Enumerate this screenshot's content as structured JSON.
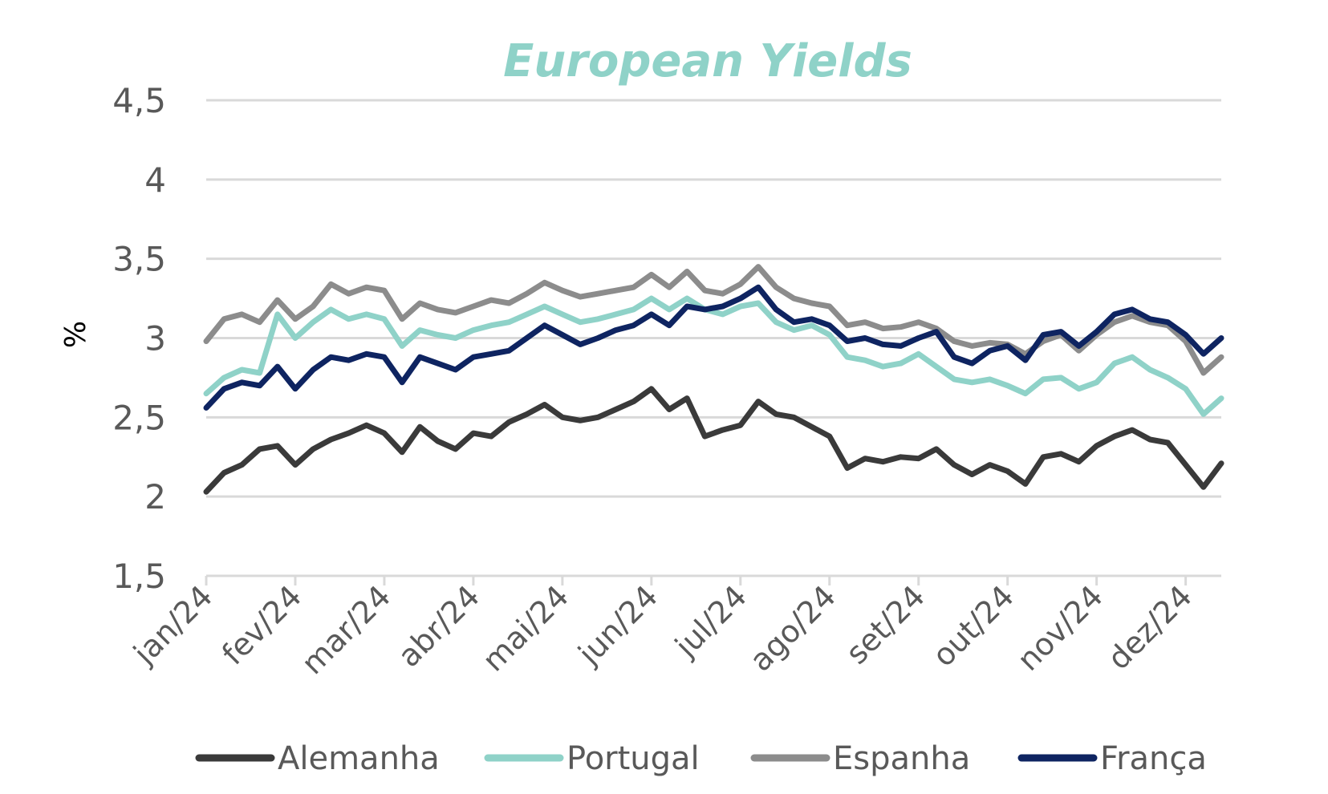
{
  "chart_data": {
    "type": "line",
    "title": "European Yields",
    "ylabel": "%",
    "xlabel": "",
    "ylim": [
      1.5,
      4.5
    ],
    "y_ticks": [
      1.5,
      2,
      2.5,
      3,
      3.5,
      4,
      4.5
    ],
    "y_tick_labels": [
      "1,5",
      "2",
      "2,5",
      "3",
      "3,5",
      "4",
      "4,5"
    ],
    "x_range": [
      0,
      11.4
    ],
    "x_ticks": [
      0,
      1,
      2,
      3,
      4,
      5,
      6,
      7,
      8,
      9,
      10,
      11
    ],
    "x_tick_labels": [
      "jan/24",
      "fev/24",
      "mar/24",
      "abr/24",
      "mai/24",
      "jun/24",
      "jul/24",
      "ago/24",
      "set/24",
      "out/24",
      "nov/24",
      "dez/24"
    ],
    "grid": "horizontal",
    "legend_position": "bottom",
    "colors": {
      "title": "#8fd2c8",
      "grid": "#d9d9d9",
      "tick_label": "#595959",
      "axis": "#d9d9d9"
    },
    "series": [
      {
        "name": "Alemanha",
        "color": "#3a3a3a",
        "x": [
          0,
          0.2,
          0.4,
          0.6,
          0.8,
          1.0,
          1.2,
          1.4,
          1.6,
          1.8,
          2.0,
          2.2,
          2.4,
          2.6,
          2.8,
          3.0,
          3.2,
          3.4,
          3.6,
          3.8,
          4.0,
          4.2,
          4.4,
          4.6,
          4.8,
          5.0,
          5.2,
          5.4,
          5.6,
          5.8,
          6.0,
          6.2,
          6.4,
          6.6,
          6.8,
          7.0,
          7.2,
          7.4,
          7.6,
          7.8,
          8.0,
          8.2,
          8.4,
          8.6,
          8.8,
          9.0,
          9.2,
          9.4,
          9.6,
          9.8,
          10.0,
          10.2,
          10.4,
          10.6,
          10.8,
          11.0,
          11.2,
          11.4
        ],
        "values": [
          2.03,
          2.15,
          2.2,
          2.3,
          2.32,
          2.2,
          2.3,
          2.36,
          2.4,
          2.45,
          2.4,
          2.28,
          2.44,
          2.35,
          2.3,
          2.4,
          2.38,
          2.47,
          2.52,
          2.58,
          2.5,
          2.48,
          2.5,
          2.55,
          2.6,
          2.68,
          2.55,
          2.62,
          2.38,
          2.42,
          2.45,
          2.6,
          2.52,
          2.5,
          2.44,
          2.38,
          2.18,
          2.24,
          2.22,
          2.25,
          2.24,
          2.3,
          2.2,
          2.14,
          2.2,
          2.16,
          2.08,
          2.25,
          2.27,
          2.22,
          2.32,
          2.38,
          2.42,
          2.36,
          2.34,
          2.2,
          2.06,
          2.21
        ]
      },
      {
        "name": "Portugal",
        "color": "#8fd2c8",
        "x": [
          0,
          0.2,
          0.4,
          0.6,
          0.8,
          1.0,
          1.2,
          1.4,
          1.6,
          1.8,
          2.0,
          2.2,
          2.4,
          2.6,
          2.8,
          3.0,
          3.2,
          3.4,
          3.6,
          3.8,
          4.0,
          4.2,
          4.4,
          4.6,
          4.8,
          5.0,
          5.2,
          5.4,
          5.6,
          5.8,
          6.0,
          6.2,
          6.4,
          6.6,
          6.8,
          7.0,
          7.2,
          7.4,
          7.6,
          7.8,
          8.0,
          8.2,
          8.4,
          8.6,
          8.8,
          9.0,
          9.2,
          9.4,
          9.6,
          9.8,
          10.0,
          10.2,
          10.4,
          10.6,
          10.8,
          11.0,
          11.2,
          11.4
        ],
        "values": [
          2.65,
          2.75,
          2.8,
          2.78,
          3.15,
          3.0,
          3.1,
          3.18,
          3.12,
          3.15,
          3.12,
          2.95,
          3.05,
          3.02,
          3.0,
          3.05,
          3.08,
          3.1,
          3.15,
          3.2,
          3.15,
          3.1,
          3.12,
          3.15,
          3.18,
          3.25,
          3.18,
          3.25,
          3.18,
          3.15,
          3.2,
          3.22,
          3.1,
          3.05,
          3.08,
          3.02,
          2.88,
          2.86,
          2.82,
          2.84,
          2.9,
          2.82,
          2.74,
          2.72,
          2.74,
          2.7,
          2.65,
          2.74,
          2.75,
          2.68,
          2.72,
          2.84,
          2.88,
          2.8,
          2.75,
          2.68,
          2.52,
          2.62
        ]
      },
      {
        "name": "Espanha",
        "color": "#8c8c8c",
        "x": [
          0,
          0.2,
          0.4,
          0.6,
          0.8,
          1.0,
          1.2,
          1.4,
          1.6,
          1.8,
          2.0,
          2.2,
          2.4,
          2.6,
          2.8,
          3.0,
          3.2,
          3.4,
          3.6,
          3.8,
          4.0,
          4.2,
          4.4,
          4.6,
          4.8,
          5.0,
          5.2,
          5.4,
          5.6,
          5.8,
          6.0,
          6.2,
          6.4,
          6.6,
          6.8,
          7.0,
          7.2,
          7.4,
          7.6,
          7.8,
          8.0,
          8.2,
          8.4,
          8.6,
          8.8,
          9.0,
          9.2,
          9.4,
          9.6,
          9.8,
          10.0,
          10.2,
          10.4,
          10.6,
          10.8,
          11.0,
          11.2,
          11.4
        ],
        "values": [
          2.98,
          3.12,
          3.15,
          3.1,
          3.24,
          3.12,
          3.2,
          3.34,
          3.28,
          3.32,
          3.3,
          3.12,
          3.22,
          3.18,
          3.16,
          3.2,
          3.24,
          3.22,
          3.28,
          3.35,
          3.3,
          3.26,
          3.28,
          3.3,
          3.32,
          3.4,
          3.32,
          3.42,
          3.3,
          3.28,
          3.34,
          3.45,
          3.32,
          3.25,
          3.22,
          3.2,
          3.08,
          3.1,
          3.06,
          3.07,
          3.1,
          3.06,
          2.98,
          2.95,
          2.97,
          2.96,
          2.9,
          2.98,
          3.02,
          2.92,
          3.02,
          3.1,
          3.14,
          3.1,
          3.08,
          2.98,
          2.78,
          2.88
        ]
      },
      {
        "name": "França",
        "color": "#0e2461",
        "x": [
          0,
          0.2,
          0.4,
          0.6,
          0.8,
          1.0,
          1.2,
          1.4,
          1.6,
          1.8,
          2.0,
          2.2,
          2.4,
          2.6,
          2.8,
          3.0,
          3.2,
          3.4,
          3.6,
          3.8,
          4.0,
          4.2,
          4.4,
          4.6,
          4.8,
          5.0,
          5.2,
          5.4,
          5.6,
          5.8,
          6.0,
          6.2,
          6.4,
          6.6,
          6.8,
          7.0,
          7.2,
          7.4,
          7.6,
          7.8,
          8.0,
          8.2,
          8.4,
          8.6,
          8.8,
          9.0,
          9.2,
          9.4,
          9.6,
          9.8,
          10.0,
          10.2,
          10.4,
          10.6,
          10.8,
          11.0,
          11.2,
          11.4
        ],
        "values": [
          2.56,
          2.68,
          2.72,
          2.7,
          2.82,
          2.68,
          2.8,
          2.88,
          2.86,
          2.9,
          2.88,
          2.72,
          2.88,
          2.84,
          2.8,
          2.88,
          2.9,
          2.92,
          3.0,
          3.08,
          3.02,
          2.96,
          3.0,
          3.05,
          3.08,
          3.15,
          3.08,
          3.2,
          3.18,
          3.2,
          3.25,
          3.32,
          3.18,
          3.1,
          3.12,
          3.08,
          2.98,
          3.0,
          2.96,
          2.95,
          3.0,
          3.04,
          2.88,
          2.84,
          2.92,
          2.95,
          2.86,
          3.02,
          3.04,
          2.95,
          3.04,
          3.15,
          3.18,
          3.12,
          3.1,
          3.02,
          2.9,
          3.0
        ]
      }
    ]
  }
}
